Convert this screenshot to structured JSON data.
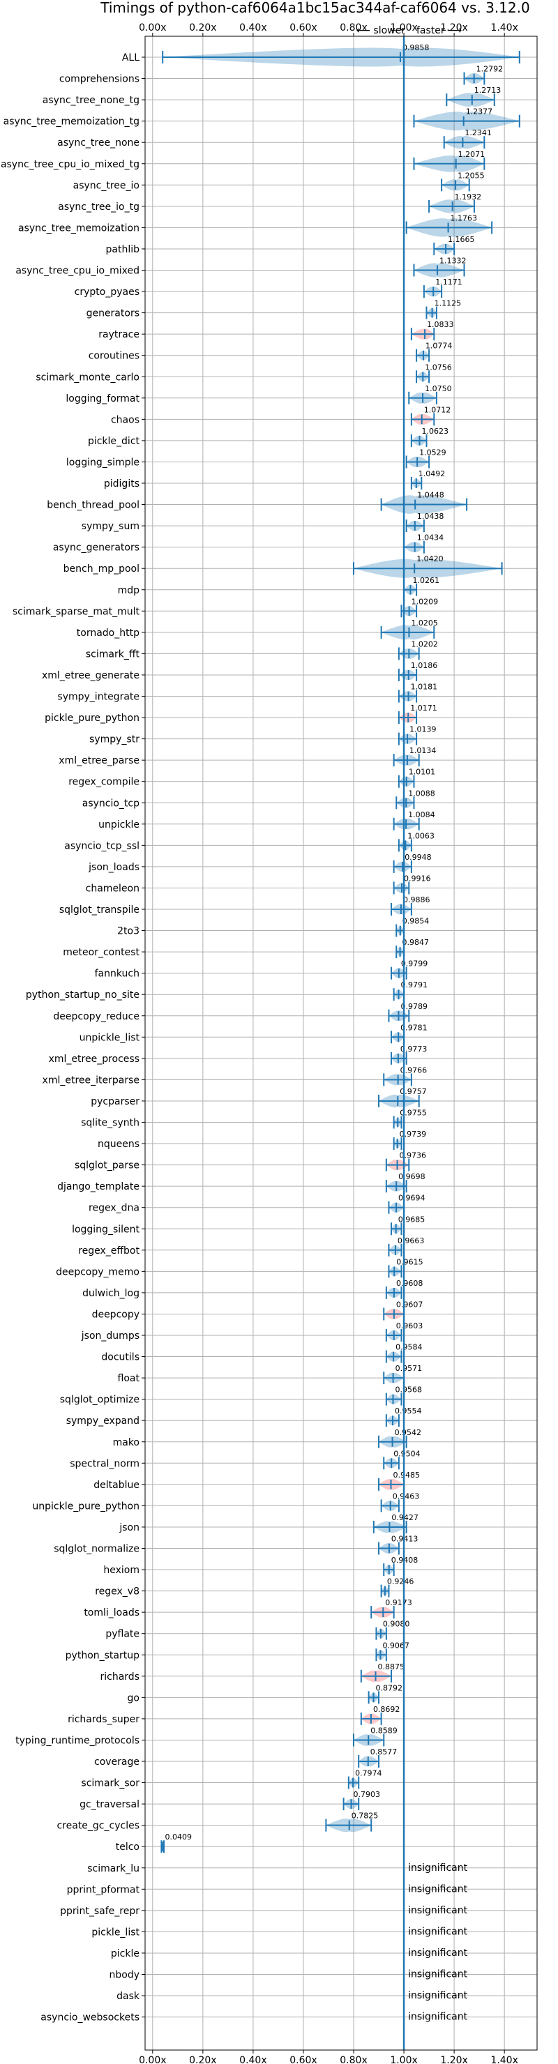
{
  "chart_data": {
    "type": "violin",
    "title": "Timings of python-caf6064a1bc15ac344af-caf6064 vs. 3.12.0",
    "direction_labels": {
      "slower": "⟵ slower",
      "faster": "faster ⟶"
    },
    "x_ticks": [
      "0.00x",
      "0.20x",
      "0.40x",
      "0.60x",
      "0.80x",
      "1.00x",
      "1.20x",
      "1.40x"
    ],
    "x_tick_values": [
      0.0,
      0.2,
      0.4,
      0.6,
      0.8,
      1.0,
      1.2,
      1.4
    ],
    "xlim": [
      -0.03,
      1.53
    ],
    "reference_line": 1.0,
    "insignificant_label": "insignificant",
    "benchmarks": [
      {
        "name": "ALL",
        "label": "0.9858",
        "median": 0.9858,
        "min": 0.04,
        "max": 1.46,
        "color": "blue"
      },
      {
        "name": "comprehensions",
        "label": "1.2792",
        "median": 1.2792,
        "min": 1.24,
        "max": 1.32,
        "color": "blue"
      },
      {
        "name": "async_tree_none_tg",
        "label": "1.2713",
        "median": 1.2713,
        "min": 1.17,
        "max": 1.36,
        "color": "blue"
      },
      {
        "name": "async_tree_memoization_tg",
        "label": "1.2377",
        "median": 1.2377,
        "min": 1.04,
        "max": 1.46,
        "color": "blue"
      },
      {
        "name": "async_tree_none",
        "label": "1.2341",
        "median": 1.2341,
        "min": 1.16,
        "max": 1.32,
        "color": "blue"
      },
      {
        "name": "async_tree_cpu_io_mixed_tg",
        "label": "1.2071",
        "median": 1.2071,
        "min": 1.04,
        "max": 1.32,
        "color": "blue"
      },
      {
        "name": "async_tree_io",
        "label": "1.2055",
        "median": 1.2055,
        "min": 1.15,
        "max": 1.26,
        "color": "blue"
      },
      {
        "name": "async_tree_io_tg",
        "label": "1.1932",
        "median": 1.1932,
        "min": 1.1,
        "max": 1.28,
        "color": "blue"
      },
      {
        "name": "async_tree_memoization",
        "label": "1.1763",
        "median": 1.1763,
        "min": 1.01,
        "max": 1.35,
        "color": "blue"
      },
      {
        "name": "pathlib",
        "label": "1.1665",
        "median": 1.1665,
        "min": 1.12,
        "max": 1.2,
        "color": "blue"
      },
      {
        "name": "async_tree_cpu_io_mixed",
        "label": "1.1332",
        "median": 1.1332,
        "min": 1.04,
        "max": 1.24,
        "color": "blue"
      },
      {
        "name": "crypto_pyaes",
        "label": "1.1171",
        "median": 1.1171,
        "min": 1.08,
        "max": 1.15,
        "color": "blue"
      },
      {
        "name": "generators",
        "label": "1.1125",
        "median": 1.1125,
        "min": 1.09,
        "max": 1.13,
        "color": "blue"
      },
      {
        "name": "raytrace",
        "label": "1.0833",
        "median": 1.0833,
        "min": 1.03,
        "max": 1.12,
        "color": "red"
      },
      {
        "name": "coroutines",
        "label": "1.0774",
        "median": 1.0774,
        "min": 1.05,
        "max": 1.1,
        "color": "blue"
      },
      {
        "name": "scimark_monte_carlo",
        "label": "1.0756",
        "median": 1.0756,
        "min": 1.05,
        "max": 1.1,
        "color": "blue"
      },
      {
        "name": "logging_format",
        "label": "1.0750",
        "median": 1.075,
        "min": 1.02,
        "max": 1.13,
        "color": "blue"
      },
      {
        "name": "chaos",
        "label": "1.0712",
        "median": 1.0712,
        "min": 1.03,
        "max": 1.12,
        "color": "red"
      },
      {
        "name": "pickle_dict",
        "label": "1.0623",
        "median": 1.0623,
        "min": 1.03,
        "max": 1.09,
        "color": "blue"
      },
      {
        "name": "logging_simple",
        "label": "1.0529",
        "median": 1.0529,
        "min": 1.01,
        "max": 1.1,
        "color": "blue"
      },
      {
        "name": "pidigits",
        "label": "1.0492",
        "median": 1.0492,
        "min": 1.03,
        "max": 1.07,
        "color": "blue"
      },
      {
        "name": "bench_thread_pool",
        "label": "1.0448",
        "median": 1.0448,
        "min": 0.91,
        "max": 1.25,
        "color": "blue"
      },
      {
        "name": "sympy_sum",
        "label": "1.0438",
        "median": 1.0438,
        "min": 1.01,
        "max": 1.08,
        "color": "blue"
      },
      {
        "name": "async_generators",
        "label": "1.0434",
        "median": 1.0434,
        "min": 1.0,
        "max": 1.08,
        "color": "blue"
      },
      {
        "name": "bench_mp_pool",
        "label": "1.0420",
        "median": 1.042,
        "min": 0.8,
        "max": 1.39,
        "color": "blue"
      },
      {
        "name": "mdp",
        "label": "1.0261",
        "median": 1.0261,
        "min": 1.0,
        "max": 1.05,
        "color": "blue"
      },
      {
        "name": "scimark_sparse_mat_mult",
        "label": "1.0209",
        "median": 1.0209,
        "min": 0.99,
        "max": 1.05,
        "color": "blue"
      },
      {
        "name": "tornado_http",
        "label": "1.0205",
        "median": 1.0205,
        "min": 0.91,
        "max": 1.12,
        "color": "blue"
      },
      {
        "name": "scimark_fft",
        "label": "1.0202",
        "median": 1.0202,
        "min": 0.98,
        "max": 1.06,
        "color": "blue"
      },
      {
        "name": "xml_etree_generate",
        "label": "1.0186",
        "median": 1.0186,
        "min": 0.98,
        "max": 1.05,
        "color": "blue"
      },
      {
        "name": "sympy_integrate",
        "label": "1.0181",
        "median": 1.0181,
        "min": 0.98,
        "max": 1.05,
        "color": "blue"
      },
      {
        "name": "pickle_pure_python",
        "label": "1.0171",
        "median": 1.0171,
        "min": 0.98,
        "max": 1.05,
        "color": "red"
      },
      {
        "name": "sympy_str",
        "label": "1.0139",
        "median": 1.0139,
        "min": 0.98,
        "max": 1.05,
        "color": "blue"
      },
      {
        "name": "xml_etree_parse",
        "label": "1.0134",
        "median": 1.0134,
        "min": 0.96,
        "max": 1.06,
        "color": "blue"
      },
      {
        "name": "regex_compile",
        "label": "1.0101",
        "median": 1.0101,
        "min": 0.98,
        "max": 1.04,
        "color": "blue"
      },
      {
        "name": "asyncio_tcp",
        "label": "1.0088",
        "median": 1.0088,
        "min": 0.97,
        "max": 1.04,
        "color": "blue"
      },
      {
        "name": "unpickle",
        "label": "1.0084",
        "median": 1.0084,
        "min": 0.96,
        "max": 1.06,
        "color": "blue"
      },
      {
        "name": "asyncio_tcp_ssl",
        "label": "1.0063",
        "median": 1.0063,
        "min": 0.98,
        "max": 1.03,
        "color": "blue"
      },
      {
        "name": "json_loads",
        "label": "0.9948",
        "median": 0.9948,
        "min": 0.96,
        "max": 1.03,
        "color": "blue"
      },
      {
        "name": "chameleon",
        "label": "0.9916",
        "median": 0.9916,
        "min": 0.96,
        "max": 1.02,
        "color": "blue"
      },
      {
        "name": "sqlglot_transpile",
        "label": "0.9886",
        "median": 0.9886,
        "min": 0.95,
        "max": 1.03,
        "color": "blue"
      },
      {
        "name": "2to3",
        "label": "0.9854",
        "median": 0.9854,
        "min": 0.97,
        "max": 1.0,
        "color": "blue"
      },
      {
        "name": "meteor_contest",
        "label": "0.9847",
        "median": 0.9847,
        "min": 0.97,
        "max": 1.0,
        "color": "blue"
      },
      {
        "name": "fannkuch",
        "label": "0.9799",
        "median": 0.9799,
        "min": 0.95,
        "max": 1.01,
        "color": "blue"
      },
      {
        "name": "python_startup_no_site",
        "label": "0.9791",
        "median": 0.9791,
        "min": 0.96,
        "max": 1.0,
        "color": "blue"
      },
      {
        "name": "deepcopy_reduce",
        "label": "0.9789",
        "median": 0.9789,
        "min": 0.94,
        "max": 1.02,
        "color": "blue"
      },
      {
        "name": "unpickle_list",
        "label": "0.9781",
        "median": 0.9781,
        "min": 0.95,
        "max": 1.0,
        "color": "blue"
      },
      {
        "name": "xml_etree_process",
        "label": "0.9773",
        "median": 0.9773,
        "min": 0.95,
        "max": 1.01,
        "color": "blue"
      },
      {
        "name": "xml_etree_iterparse",
        "label": "0.9766",
        "median": 0.9766,
        "min": 0.92,
        "max": 1.03,
        "color": "blue"
      },
      {
        "name": "pycparser",
        "label": "0.9757",
        "median": 0.9757,
        "min": 0.9,
        "max": 1.06,
        "color": "blue"
      },
      {
        "name": "sqlite_synth",
        "label": "0.9755",
        "median": 0.9755,
        "min": 0.96,
        "max": 0.99,
        "color": "blue"
      },
      {
        "name": "nqueens",
        "label": "0.9739",
        "median": 0.9739,
        "min": 0.96,
        "max": 0.99,
        "color": "blue"
      },
      {
        "name": "sqlglot_parse",
        "label": "0.9736",
        "median": 0.9736,
        "min": 0.93,
        "max": 1.02,
        "color": "red"
      },
      {
        "name": "django_template",
        "label": "0.9698",
        "median": 0.9698,
        "min": 0.93,
        "max": 1.01,
        "color": "blue"
      },
      {
        "name": "regex_dna",
        "label": "0.9694",
        "median": 0.9694,
        "min": 0.94,
        "max": 1.0,
        "color": "blue"
      },
      {
        "name": "logging_silent",
        "label": "0.9685",
        "median": 0.9685,
        "min": 0.95,
        "max": 0.99,
        "color": "blue"
      },
      {
        "name": "regex_effbot",
        "label": "0.9663",
        "median": 0.9663,
        "min": 0.94,
        "max": 0.99,
        "color": "blue"
      },
      {
        "name": "deepcopy_memo",
        "label": "0.9615",
        "median": 0.9615,
        "min": 0.94,
        "max": 0.99,
        "color": "blue"
      },
      {
        "name": "dulwich_log",
        "label": "0.9608",
        "median": 0.9608,
        "min": 0.93,
        "max": 0.99,
        "color": "blue"
      },
      {
        "name": "deepcopy",
        "label": "0.9607",
        "median": 0.9607,
        "min": 0.92,
        "max": 1.0,
        "color": "red"
      },
      {
        "name": "json_dumps",
        "label": "0.9603",
        "median": 0.9603,
        "min": 0.93,
        "max": 0.99,
        "color": "blue"
      },
      {
        "name": "docutils",
        "label": "0.9584",
        "median": 0.9584,
        "min": 0.93,
        "max": 0.99,
        "color": "blue"
      },
      {
        "name": "float",
        "label": "0.9571",
        "median": 0.9571,
        "min": 0.92,
        "max": 1.0,
        "color": "blue"
      },
      {
        "name": "sqlglot_optimize",
        "label": "0.9568",
        "median": 0.9568,
        "min": 0.93,
        "max": 0.99,
        "color": "blue"
      },
      {
        "name": "sympy_expand",
        "label": "0.9554",
        "median": 0.9554,
        "min": 0.93,
        "max": 0.98,
        "color": "blue"
      },
      {
        "name": "mako",
        "label": "0.9542",
        "median": 0.9542,
        "min": 0.9,
        "max": 1.01,
        "color": "blue"
      },
      {
        "name": "spectral_norm",
        "label": "0.9504",
        "median": 0.9504,
        "min": 0.92,
        "max": 0.98,
        "color": "blue"
      },
      {
        "name": "deltablue",
        "label": "0.9485",
        "median": 0.9485,
        "min": 0.9,
        "max": 1.0,
        "color": "red"
      },
      {
        "name": "unpickle_pure_python",
        "label": "0.9463",
        "median": 0.9463,
        "min": 0.91,
        "max": 0.98,
        "color": "blue"
      },
      {
        "name": "json",
        "label": "0.9427",
        "median": 0.9427,
        "min": 0.88,
        "max": 1.01,
        "color": "blue"
      },
      {
        "name": "sqlglot_normalize",
        "label": "0.9413",
        "median": 0.9413,
        "min": 0.9,
        "max": 0.98,
        "color": "blue"
      },
      {
        "name": "hexiom",
        "label": "0.9408",
        "median": 0.9408,
        "min": 0.92,
        "max": 0.96,
        "color": "blue"
      },
      {
        "name": "regex_v8",
        "label": "0.9246",
        "median": 0.9246,
        "min": 0.91,
        "max": 0.94,
        "color": "blue"
      },
      {
        "name": "tomli_loads",
        "label": "0.9173",
        "median": 0.9173,
        "min": 0.87,
        "max": 0.96,
        "color": "red"
      },
      {
        "name": "pyflate",
        "label": "0.9080",
        "median": 0.908,
        "min": 0.89,
        "max": 0.93,
        "color": "blue"
      },
      {
        "name": "python_startup",
        "label": "0.9067",
        "median": 0.9067,
        "min": 0.89,
        "max": 0.93,
        "color": "blue"
      },
      {
        "name": "richards",
        "label": "0.8875",
        "median": 0.8875,
        "min": 0.83,
        "max": 0.95,
        "color": "red"
      },
      {
        "name": "go",
        "label": "0.8792",
        "median": 0.8792,
        "min": 0.86,
        "max": 0.9,
        "color": "blue"
      },
      {
        "name": "richards_super",
        "label": "0.8692",
        "median": 0.8692,
        "min": 0.83,
        "max": 0.91,
        "color": "red"
      },
      {
        "name": "typing_runtime_protocols",
        "label": "0.8589",
        "median": 0.8589,
        "min": 0.8,
        "max": 0.92,
        "color": "blue"
      },
      {
        "name": "coverage",
        "label": "0.8577",
        "median": 0.8577,
        "min": 0.82,
        "max": 0.9,
        "color": "blue"
      },
      {
        "name": "scimark_sor",
        "label": "0.7974",
        "median": 0.7974,
        "min": 0.78,
        "max": 0.82,
        "color": "blue"
      },
      {
        "name": "gc_traversal",
        "label": "0.7903",
        "median": 0.7903,
        "min": 0.76,
        "max": 0.82,
        "color": "blue"
      },
      {
        "name": "create_gc_cycles",
        "label": "0.7825",
        "median": 0.7825,
        "min": 0.69,
        "max": 0.87,
        "color": "blue"
      },
      {
        "name": "telco",
        "label": "0.0409",
        "median": 0.0409,
        "min": 0.035,
        "max": 0.045,
        "color": "blue"
      },
      {
        "name": "scimark_lu",
        "insignificant": true
      },
      {
        "name": "pprint_pformat",
        "insignificant": true
      },
      {
        "name": "pprint_safe_repr",
        "insignificant": true
      },
      {
        "name": "pickle_list",
        "insignificant": true
      },
      {
        "name": "pickle",
        "insignificant": true
      },
      {
        "name": "nbody",
        "insignificant": true
      },
      {
        "name": "dask",
        "insignificant": true
      },
      {
        "name": "asyncio_websockets",
        "insignificant": true
      }
    ],
    "colors": {
      "accent": "#1f77b4",
      "violin_blue": "#1f77b4",
      "violin_red": "#ff4d4d",
      "grid": "#b0b0b0",
      "axis": "#000000"
    }
  }
}
